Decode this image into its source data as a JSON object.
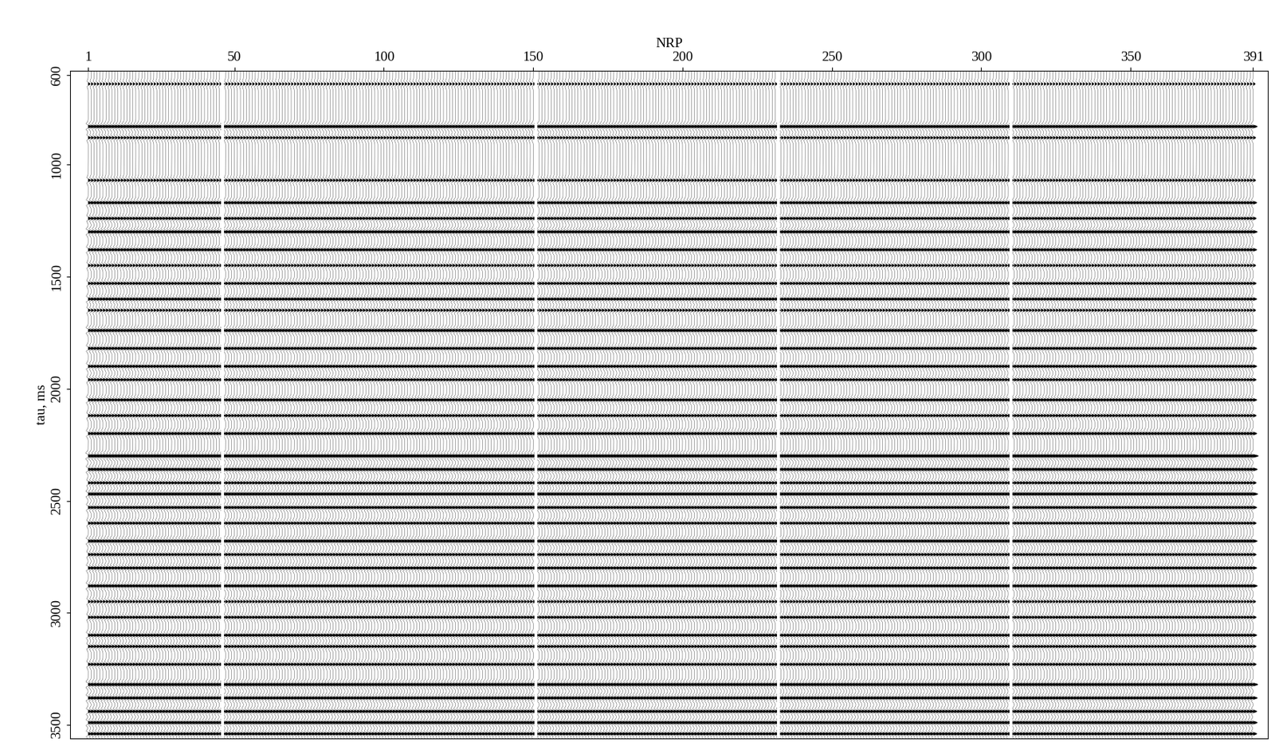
{
  "chart_data": {
    "type": "seismic_section",
    "xlabel": "NRP",
    "ylabel": "tau, ms",
    "xlim": [
      -5,
      396
    ],
    "ylim": [
      3560,
      580
    ],
    "xticks": [
      1,
      50,
      100,
      150,
      200,
      250,
      300,
      350,
      391
    ],
    "yticks": [
      600,
      1000,
      1500,
      2000,
      2500,
      3000,
      3500
    ],
    "reflectors": {
      "tau": [
        640,
        830,
        880,
        1070,
        1170,
        1240,
        1300,
        1380,
        1450,
        1530,
        1600,
        1650,
        1740,
        1820,
        1900,
        1960,
        2050,
        2120,
        2200,
        2300,
        2360,
        2420,
        2470,
        2530,
        2600,
        2680,
        2740,
        2800,
        2880,
        2950,
        3020,
        3100,
        3150,
        3230,
        3320,
        3380,
        3440,
        3490,
        3540
      ],
      "amplitude": [
        0.4,
        0.8,
        0.5,
        0.5,
        0.7,
        0.6,
        0.8,
        0.7,
        0.5,
        0.6,
        0.7,
        0.5,
        0.8,
        0.7,
        0.7,
        0.6,
        0.7,
        0.6,
        0.7,
        1.0,
        0.8,
        0.6,
        0.9,
        0.7,
        0.6,
        0.8,
        0.6,
        0.7,
        0.8,
        0.5,
        0.6,
        0.7,
        0.6,
        0.6,
        0.9,
        0.8,
        0.7,
        0.8,
        0.7
      ]
    },
    "gaps": [
      46,
      151,
      232,
      310
    ]
  }
}
